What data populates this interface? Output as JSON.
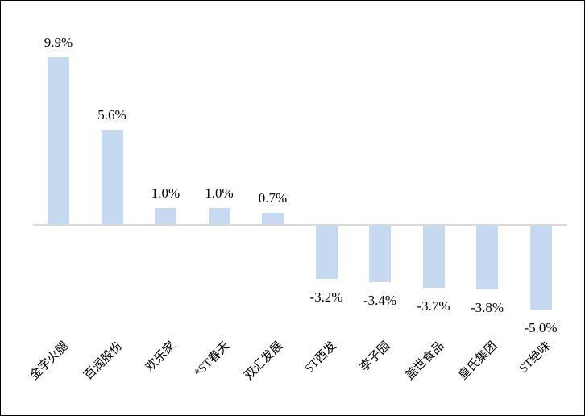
{
  "chart_data": {
    "type": "bar",
    "title": "",
    "xlabel": "",
    "ylabel": "",
    "categories": [
      "金字火腿",
      "百润股份",
      "欢乐家",
      "*ST春天",
      "双汇发展",
      "ST西发",
      "李子园",
      "盖世食品",
      "皇氏集团",
      "ST绝味"
    ],
    "values": [
      9.9,
      5.6,
      1.0,
      1.0,
      0.7,
      -3.2,
      -3.4,
      -3.7,
      -3.8,
      -5.0
    ],
    "value_labels": [
      "9.9%",
      "5.6%",
      "1.0%",
      "1.0%",
      "0.7%",
      "-3.2%",
      "-3.4%",
      "-3.7%",
      "-3.8%",
      "-5.0%"
    ],
    "ylim": [
      -6.5,
      11
    ],
    "grid": false,
    "legend": false,
    "x_label_rotation_deg": 45,
    "bar_color": "#c5d9f1",
    "axis_line_color": "#d9d9d9",
    "text_color": "#000000"
  }
}
